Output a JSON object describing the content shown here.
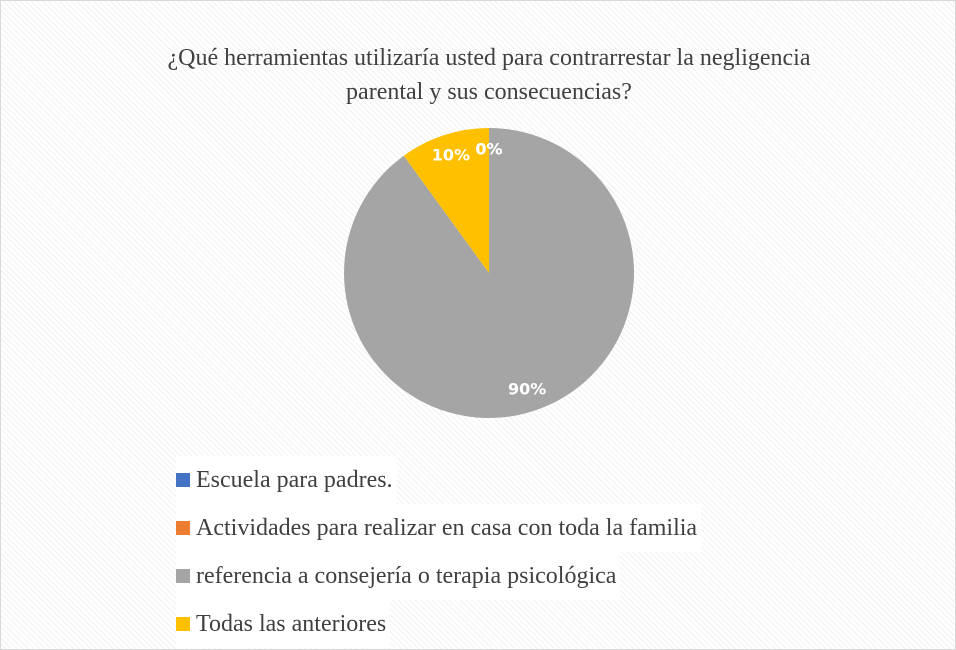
{
  "chart_data": {
    "type": "pie",
    "title": "¿Qué herramientas utilizaría usted para contrarrestar la negligencia parental y sus consecuencias?",
    "categories": [
      "Escuela para padres.",
      "Actividades para realizar en casa con toda la familia",
      "referencia a consejería o terapia psicológica",
      "Todas las anteriores"
    ],
    "values": [
      0,
      0,
      90,
      10
    ],
    "value_labels": [
      "0%",
      "0%",
      "90%",
      "10%"
    ],
    "colors": [
      "#4472c4",
      "#ed7d31",
      "#a5a5a5",
      "#ffc000"
    ]
  }
}
